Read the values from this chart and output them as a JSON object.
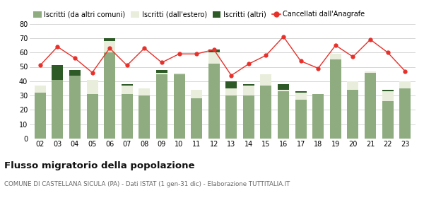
{
  "years": [
    "02",
    "03",
    "04",
    "05",
    "06",
    "07",
    "08",
    "09",
    "10",
    "11",
    "12",
    "13",
    "14",
    "15",
    "16",
    "17",
    "18",
    "19",
    "20",
    "21",
    "22",
    "23"
  ],
  "iscritti_altri_comuni": [
    32,
    41,
    44,
    31,
    60,
    31,
    30,
    45,
    45,
    28,
    52,
    30,
    30,
    37,
    33,
    27,
    31,
    55,
    34,
    46,
    26,
    35
  ],
  "iscritti_estero": [
    5,
    0,
    0,
    10,
    8,
    6,
    5,
    1,
    1,
    6,
    8,
    5,
    7,
    8,
    1,
    5,
    0,
    4,
    6,
    1,
    7,
    5
  ],
  "iscritti_altri": [
    0,
    10,
    4,
    0,
    2,
    1,
    0,
    2,
    0,
    0,
    2,
    5,
    1,
    0,
    4,
    1,
    0,
    0,
    0,
    0,
    1,
    0
  ],
  "cancellati": [
    51,
    64,
    56,
    46,
    63,
    51,
    63,
    53,
    59,
    59,
    62,
    44,
    52,
    58,
    71,
    54,
    49,
    65,
    57,
    69,
    60,
    47
  ],
  "color_altri_comuni": "#8fac80",
  "color_estero": "#e8eedb",
  "color_altri": "#2d5a27",
  "color_cancellati": "#e8302a",
  "title": "Flusso migratorio della popolazione",
  "subtitle": "COMUNE DI CASTELLANA SICULA (PA) - Dati ISTAT (1 gen-31 dic) - Elaborazione TUTTITALIA.IT",
  "legend_labels": [
    "Iscritti (da altri comuni)",
    "Iscritti (dall'estero)",
    "Iscritti (altri)",
    "Cancellati dall'Anagrafe"
  ],
  "ylim": [
    0,
    80
  ],
  "yticks": [
    0,
    10,
    20,
    30,
    40,
    50,
    60,
    70,
    80
  ],
  "background_color": "#ffffff",
  "grid_color": "#d0d0d0"
}
